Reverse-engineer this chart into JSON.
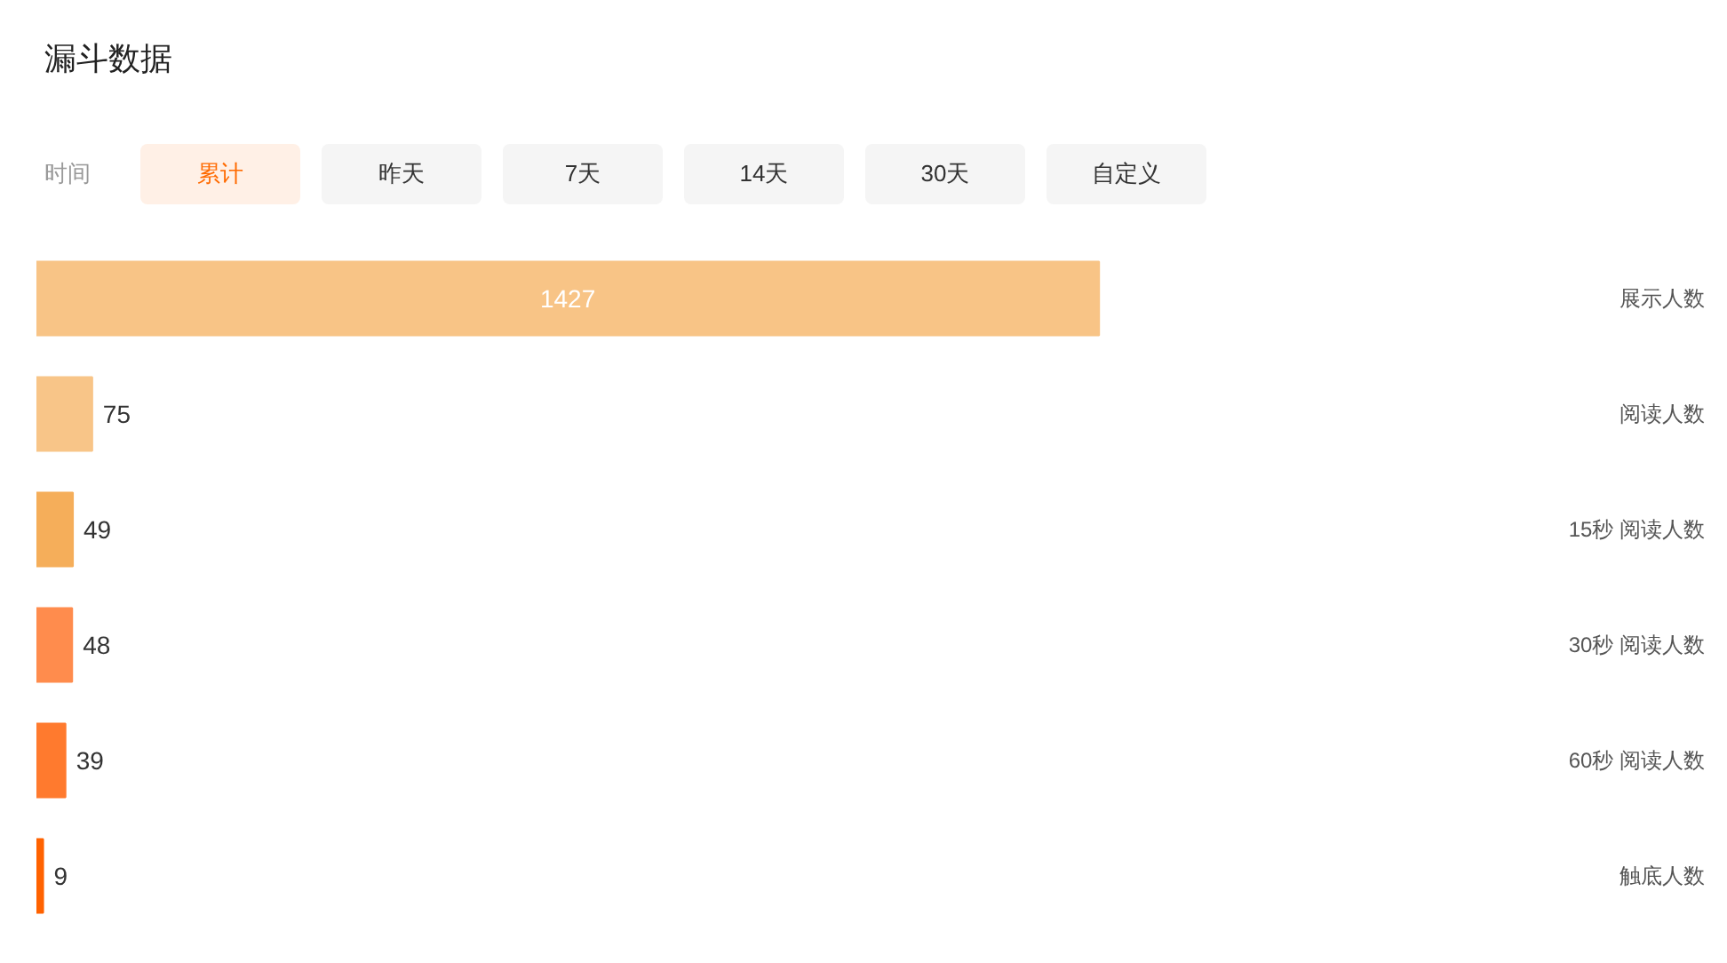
{
  "chart_data": {
    "type": "bar",
    "orientation": "horizontal",
    "title": "漏斗数据",
    "annotations": [
      "时间",
      "累计",
      "昨天",
      "7天",
      "14天",
      "30天",
      "自定义"
    ],
    "categories": [
      "展示人数",
      "阅读人数",
      "15秒 阅读人数",
      "30秒 阅读人数",
      "60秒 阅读人数",
      "触底人数"
    ],
    "values": [
      1427,
      75,
      49,
      48,
      39,
      9
    ],
    "colors": [
      "#f8c486",
      "#f8c588",
      "#f5ae5a",
      "#ff8c4d",
      "#ff7a2e",
      "#ff6200"
    ],
    "data_labels": true,
    "grid": false
  }
}
